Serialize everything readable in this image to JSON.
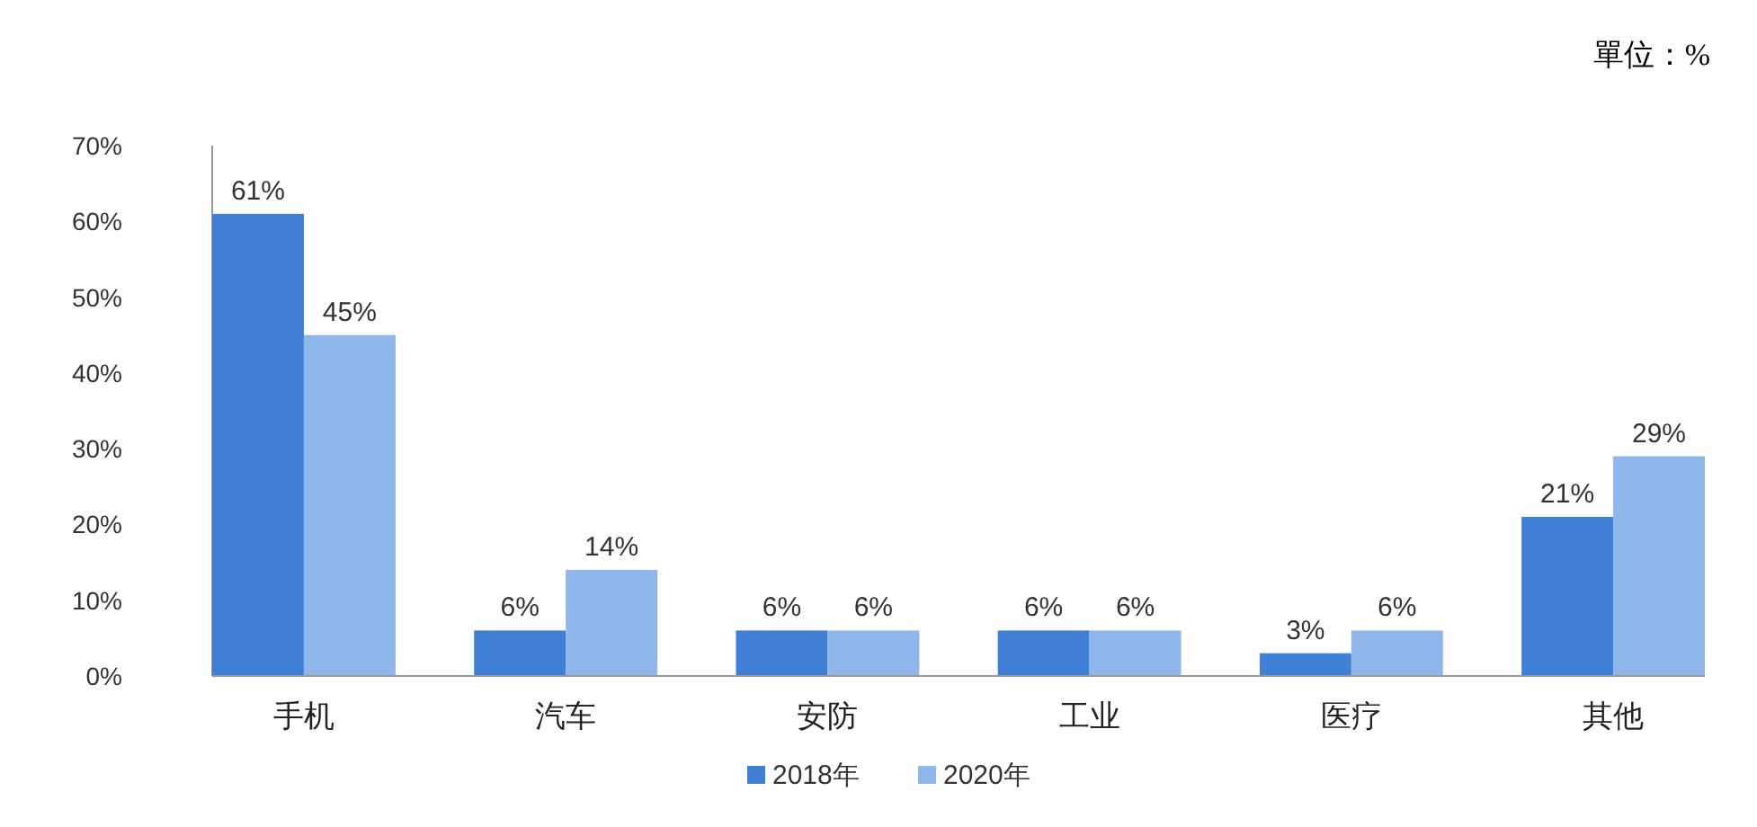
{
  "chart_data": {
    "type": "bar",
    "categories": [
      "手机",
      "汽车",
      "安防",
      "工业",
      "医疗",
      "其他"
    ],
    "series": [
      {
        "name": "2018年",
        "color": "#3f7fd6",
        "values": [
          61,
          6,
          6,
          6,
          3,
          21
        ],
        "value_labels": [
          "61%",
          "6%",
          "6%",
          "6%",
          "3%",
          "21%"
        ]
      },
      {
        "name": "2020年",
        "color": "#8fb6ea",
        "values": [
          45,
          14,
          6,
          6,
          6,
          29
        ],
        "value_labels": [
          "45%",
          "14%",
          "6%",
          "6%",
          "6%",
          "29%"
        ]
      }
    ],
    "ylim": [
      0,
      70
    ],
    "yticks": [
      {
        "value": 0,
        "label": "0%"
      },
      {
        "value": 10,
        "label": "10%"
      },
      {
        "value": 20,
        "label": "20%"
      },
      {
        "value": 30,
        "label": "30%"
      },
      {
        "value": 40,
        "label": "40%"
      },
      {
        "value": 50,
        "label": "50%"
      },
      {
        "value": 60,
        "label": "60%"
      },
      {
        "value": 70,
        "label": "70%"
      }
    ],
    "annotations": [
      "單位：%"
    ],
    "legend": "bottom",
    "grid": false
  }
}
